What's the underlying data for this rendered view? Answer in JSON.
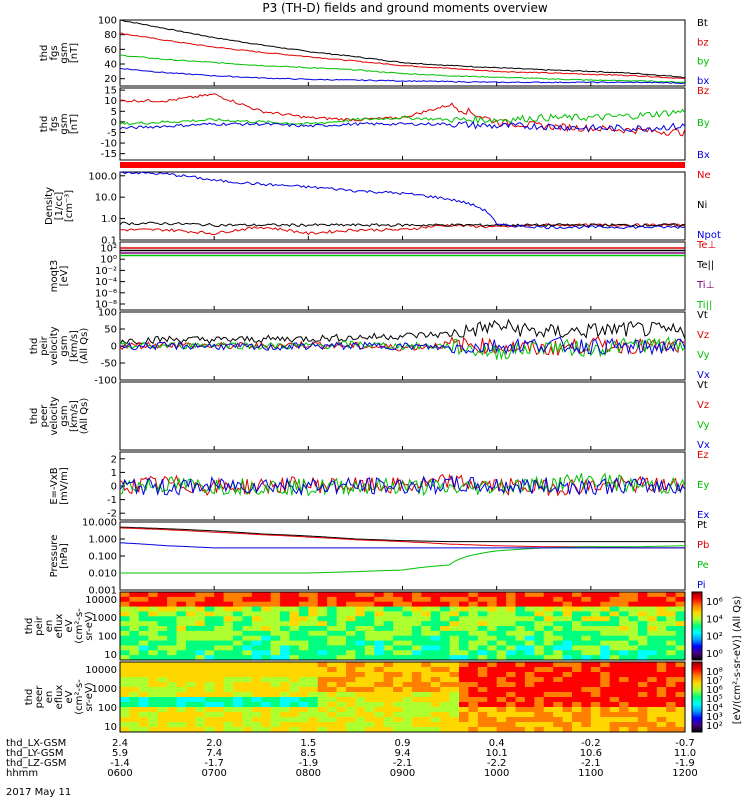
{
  "title": "P3 (TH-D) fields and ground moments overview",
  "date_label": "2017 May 11",
  "colorbar": {
    "label": "[eV/(cm^2-s-sr-eV)] (All Qs)",
    "label_ee": "[eV/(cm^2-s-sr-eV)]",
    "ticks_top": [
      "10^6",
      "10^4",
      "10^2",
      "10^0"
    ],
    "ticks_bottom": [
      "10^8",
      "10^7",
      "10^6",
      "10^5",
      "10^4",
      "10^3",
      "10^2"
    ],
    "gradient": [
      "#8b0000",
      "#ff0000",
      "#ff7f00",
      "#ffd700",
      "#adff2f",
      "#00ff7f",
      "#00ffff",
      "#00a0ff",
      "#0000ff",
      "#4b0082",
      "#000000"
    ]
  },
  "x_axis": {
    "row_labels": [
      "thd_LX-GSM",
      "thd_LY-GSM",
      "thd_LZ-GSM",
      "hhmm"
    ],
    "lx": [
      "2.4",
      "2.0",
      "1.5",
      "0.9",
      "0.4",
      "-0.2",
      "-0.7"
    ],
    "ly": [
      "5.9",
      "7.4",
      "8.5",
      "9.4",
      "10.1",
      "10.6",
      "11.0"
    ],
    "lz": [
      "-1.4",
      "-1.7",
      "-1.9",
      "-2.1",
      "-2.2",
      "-2.1",
      "-1.9"
    ],
    "hhmm": [
      "0600",
      "0700",
      "0800",
      "0900",
      "1000",
      "1100",
      "1200"
    ]
  },
  "chart_data": [
    {
      "type": "line",
      "panel": "fgs_gsm_bt",
      "ylabel": [
        "thd",
        "fgs",
        "gsm",
        "[nT]"
      ],
      "yticks": [
        "100",
        "80",
        "60",
        "40",
        "20"
      ],
      "ylim": [
        10,
        100
      ],
      "x": [
        6.0,
        6.5,
        7.0,
        7.5,
        8.0,
        8.5,
        9.0,
        9.5,
        10.0,
        10.5,
        11.0,
        11.5,
        12.0
      ],
      "series": [
        {
          "name": "Bt",
          "color": "#000000",
          "values": [
            100,
            88,
            76,
            66,
            57,
            50,
            42,
            38,
            35,
            32,
            30,
            27,
            22
          ]
        },
        {
          "name": "bz",
          "color": "#e00000",
          "values": [
            82,
            72,
            63,
            56,
            50,
            44,
            38,
            34,
            30,
            28,
            26,
            24,
            20
          ]
        },
        {
          "name": "by",
          "color": "#00c000",
          "values": [
            52,
            46,
            42,
            38,
            35,
            32,
            27,
            24,
            22,
            20,
            18,
            17,
            15
          ]
        },
        {
          "name": "bx",
          "color": "#0000e0",
          "values": [
            34,
            28,
            24,
            21,
            19,
            18,
            17,
            16,
            15,
            15,
            15,
            15,
            14
          ]
        }
      ]
    },
    {
      "type": "line",
      "panel": "fgs_gsm_b",
      "ylabel": [
        "thd",
        "fgs",
        "gsm",
        "[nT]"
      ],
      "yticks": [
        "15",
        "10",
        "5",
        "0",
        "-5",
        "-10",
        "-15"
      ],
      "ylim": [
        -18,
        16
      ],
      "x": [
        6.0,
        6.5,
        7.0,
        7.5,
        8.0,
        8.5,
        9.0,
        9.5,
        10.0,
        10.5,
        11.0,
        11.5,
        12.0
      ],
      "series": [
        {
          "name": "Bz",
          "color": "#e00000",
          "values": [
            10,
            10,
            13,
            5,
            2,
            1,
            2,
            8,
            0,
            -2,
            -3,
            -4,
            -5
          ]
        },
        {
          "name": "By",
          "color": "#00c000",
          "values": [
            -1,
            0,
            1,
            0,
            -1,
            1,
            2,
            1,
            1,
            2,
            2,
            3,
            5
          ]
        },
        {
          "name": "Bx",
          "color": "#0000e0",
          "values": [
            -3,
            -2,
            -1,
            -1,
            -2,
            -1,
            -1,
            -1,
            -2,
            -2,
            -3,
            -3,
            -2
          ]
        }
      ]
    },
    {
      "type": "line",
      "panel": "density",
      "ylabel": [
        "Density",
        "[1/cc]",
        "[cm^-3]"
      ],
      "yticks": [
        "100.0",
        "10.0",
        "1.0",
        "0.1"
      ],
      "ylim": [
        0.1,
        150
      ],
      "scale": "log",
      "x": [
        6.0,
        6.5,
        7.0,
        7.5,
        8.0,
        8.5,
        9.0,
        9.5,
        10.0,
        10.5,
        11.0,
        11.5,
        12.0
      ],
      "series": [
        {
          "name": "Ne",
          "color": "#e00000",
          "values": [
            0.3,
            0.3,
            0.2,
            0.4,
            0.2,
            0.3,
            0.3,
            0.5,
            0.4,
            0.5,
            0.5,
            0.5,
            0.5
          ]
        },
        {
          "name": "Ni",
          "color": "#000000",
          "values": [
            0.6,
            0.6,
            0.5,
            0.5,
            0.5,
            0.5,
            0.5,
            0.5,
            0.5,
            0.5,
            0.5,
            0.5,
            0.5
          ]
        },
        {
          "name": "Npot",
          "color": "#0000e0",
          "values": [
            150,
            120,
            60,
            40,
            30,
            20,
            15,
            8,
            0.5,
            0.4,
            0.4,
            0.4,
            0.4
          ]
        }
      ]
    },
    {
      "type": "line",
      "panel": "moqt3",
      "ylabel": [
        "moqt3",
        "[eV]"
      ],
      "yticks": [
        "10^2",
        "10^0",
        "10^-2",
        "10^-4",
        "10^-6",
        "10^-8"
      ],
      "scale": "log",
      "x": [
        6.0,
        9.0,
        12.0
      ],
      "series": [
        {
          "name": "Te⊥",
          "color": "#e00000",
          "values": [
            50,
            50,
            50
          ]
        },
        {
          "name": "Te||",
          "color": "#000000",
          "values": [
            40,
            40,
            40
          ]
        },
        {
          "name": "Ti⊥",
          "color": "#800080",
          "values": [
            30,
            30,
            30
          ]
        },
        {
          "name": "Ti||",
          "color": "#00c000",
          "values": [
            30,
            30,
            30
          ]
        }
      ]
    },
    {
      "type": "line",
      "panel": "peir_velocity",
      "ylabel": [
        "thd",
        "peir",
        "velocity",
        "gsm",
        "[km/s]",
        "(All Qs)"
      ],
      "yticks": [
        "100",
        "50",
        "0",
        "-50",
        "-100"
      ],
      "ylim": [
        -100,
        100
      ],
      "x": [
        6.0,
        6.5,
        7.0,
        7.5,
        8.0,
        8.5,
        9.0,
        9.5,
        10.0,
        10.5,
        11.0,
        11.5,
        12.0
      ],
      "series": [
        {
          "name": "Vt",
          "color": "#000000",
          "values": [
            15,
            20,
            18,
            20,
            22,
            25,
            30,
            35,
            60,
            40,
            45,
            50,
            40
          ]
        },
        {
          "name": "Vz",
          "color": "#e00000",
          "values": [
            0,
            5,
            0,
            0,
            5,
            0,
            -5,
            5,
            0,
            -10,
            5,
            0,
            -5
          ]
        },
        {
          "name": "Vy",
          "color": "#00c000",
          "values": [
            0,
            0,
            5,
            0,
            0,
            5,
            0,
            0,
            -20,
            0,
            -10,
            5,
            0
          ]
        },
        {
          "name": "Vx",
          "color": "#0000e0",
          "values": [
            0,
            0,
            0,
            -5,
            0,
            0,
            0,
            -5,
            0,
            5,
            0,
            -5,
            0
          ]
        }
      ]
    },
    {
      "type": "line",
      "panel": "peer_velocity",
      "ylabel": [
        "thd",
        "peer",
        "velocity",
        "gsm",
        "[km/s]",
        "(All Qs)"
      ],
      "series": [
        {
          "name": "Vt",
          "color": "#000000",
          "values": []
        },
        {
          "name": "Vz",
          "color": "#e00000",
          "values": []
        },
        {
          "name": "Vy",
          "color": "#00c000",
          "values": []
        },
        {
          "name": "Vx",
          "color": "#0000e0",
          "values": []
        }
      ]
    },
    {
      "type": "line",
      "panel": "e_field",
      "ylabel": [
        "E=-VxB",
        "[mV/m]"
      ],
      "yticks": [
        "2",
        "1",
        "0",
        "-1",
        "-2"
      ],
      "ylim": [
        -2.5,
        2.5
      ],
      "x": [
        6.0,
        6.5,
        7.0,
        7.5,
        8.0,
        8.5,
        9.0,
        9.5,
        10.0,
        10.5,
        11.0,
        11.5,
        12.0
      ],
      "series": [
        {
          "name": "Ez",
          "color": "#e00000",
          "values": [
            0,
            0.2,
            -0.1,
            0,
            0.1,
            0,
            0,
            0.3,
            0,
            -0.1,
            0,
            0.1,
            0
          ]
        },
        {
          "name": "Ey",
          "color": "#00c000",
          "values": [
            0,
            0.1,
            0,
            0,
            -0.1,
            0,
            0,
            -0.2,
            0,
            0.1,
            0.5,
            0,
            0
          ]
        },
        {
          "name": "Ex",
          "color": "#0000e0",
          "values": [
            0,
            -0.1,
            0,
            0.1,
            0,
            0,
            0,
            0.1,
            0,
            0,
            0,
            0,
            0
          ]
        }
      ]
    },
    {
      "type": "line",
      "panel": "pressure",
      "ylabel": [
        "Pressure",
        "[nPa]"
      ],
      "yticks": [
        "10.000",
        "1.000",
        "0.100",
        "0.010",
        "0.001"
      ],
      "ylim": [
        0.001,
        10
      ],
      "scale": "log",
      "x": [
        6.0,
        6.5,
        7.0,
        7.5,
        8.0,
        8.5,
        9.0,
        9.5,
        10.0,
        10.5,
        11.0,
        11.5,
        12.0
      ],
      "series": [
        {
          "name": "Pt",
          "color": "#000000",
          "values": [
            5,
            4,
            3,
            2,
            1.5,
            1.0,
            0.8,
            0.7,
            0.7,
            0.7,
            0.7,
            0.7,
            0.7
          ]
        },
        {
          "name": "Pb",
          "color": "#e00000",
          "values": [
            4.5,
            3.5,
            2.5,
            1.8,
            1.3,
            0.9,
            0.7,
            0.5,
            0.4,
            0.35,
            0.35,
            0.3,
            0.3
          ]
        },
        {
          "name": "Pe",
          "color": "#00c000",
          "values": [
            0.01,
            0.01,
            0.01,
            0.01,
            0.01,
            0.012,
            0.015,
            0.03,
            0.2,
            0.3,
            0.35,
            0.35,
            0.4
          ]
        },
        {
          "name": "Pi",
          "color": "#0000e0",
          "values": [
            0.6,
            0.4,
            0.3,
            0.3,
            0.3,
            0.3,
            0.3,
            0.3,
            0.3,
            0.3,
            0.3,
            0.3,
            0.3
          ]
        }
      ]
    },
    {
      "type": "heatmap",
      "panel": "peir_en_eflux",
      "ylabel": [
        "thd",
        "peir",
        "en",
        "eflux",
        "eV",
        "(cm^2-s-",
        "sr-eV)"
      ],
      "yticks": [
        "10000",
        "1000",
        "100",
        "10"
      ],
      "ylim": [
        5,
        25000
      ],
      "scale": "log"
    },
    {
      "type": "heatmap",
      "panel": "peer_en_eflux",
      "ylabel": [
        "thd",
        "peer",
        "en",
        "eflux",
        "eV",
        "(cm^2-s-",
        "sr-eV)"
      ],
      "yticks": [
        "10000",
        "1000",
        "100",
        "10"
      ],
      "ylim": [
        5,
        25000
      ],
      "scale": "log"
    }
  ]
}
